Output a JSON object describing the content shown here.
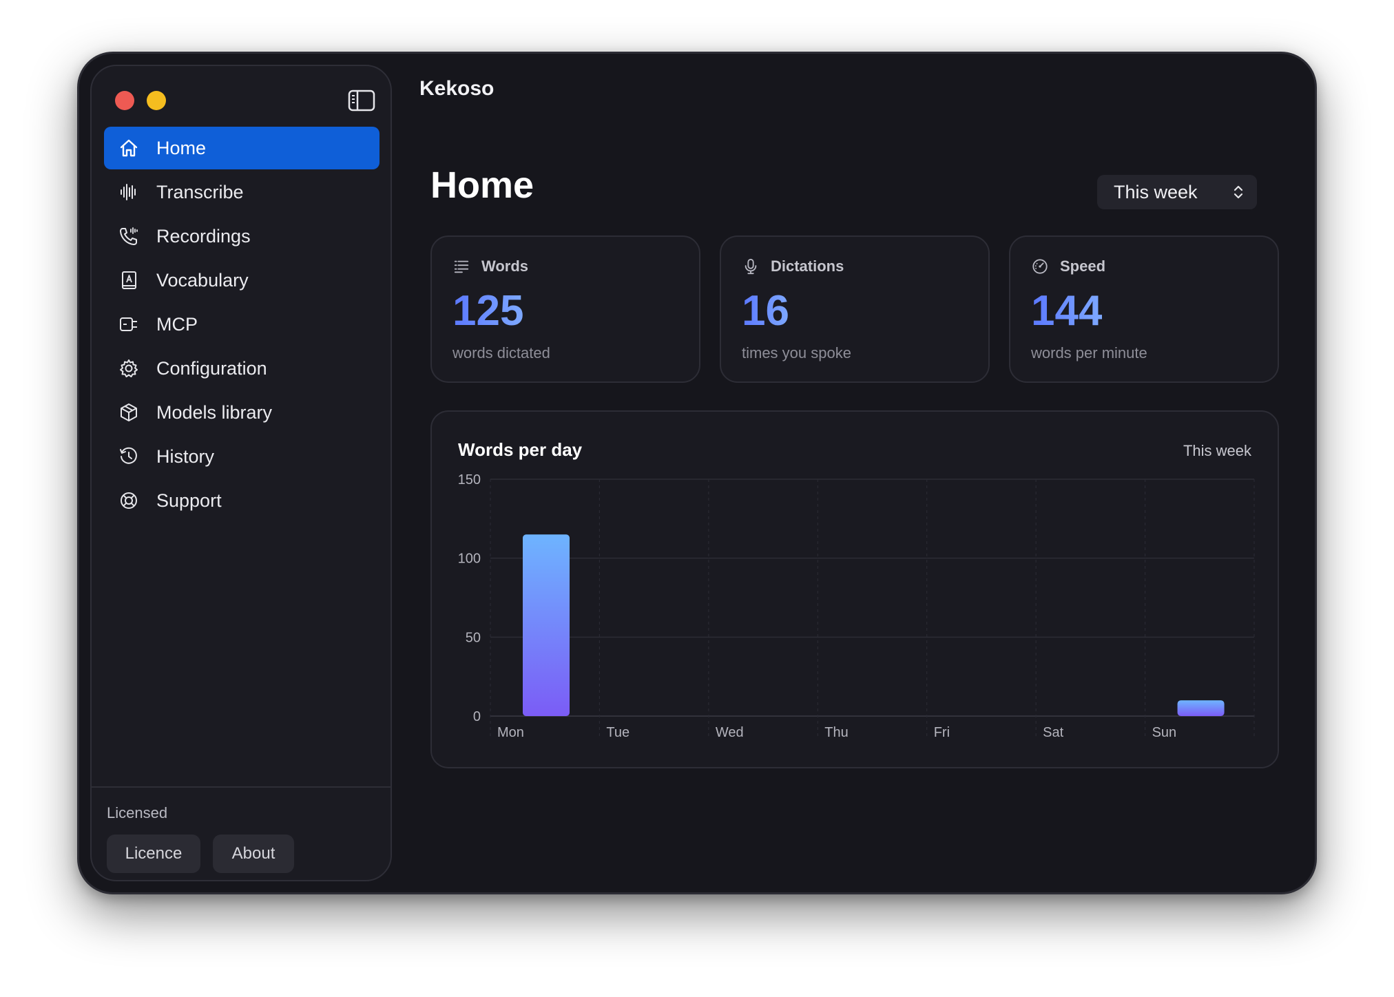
{
  "window": {
    "app_title": "Kekoso",
    "controls": [
      "close",
      "minimize"
    ]
  },
  "sidebar": {
    "items": [
      {
        "label": "Home",
        "icon": "home-icon",
        "active": true
      },
      {
        "label": "Transcribe",
        "icon": "waveform-icon",
        "active": false
      },
      {
        "label": "Recordings",
        "icon": "phone-waves-icon",
        "active": false
      },
      {
        "label": "Vocabulary",
        "icon": "dictionary-icon",
        "active": false
      },
      {
        "label": "MCP",
        "icon": "plug-icon",
        "active": false
      },
      {
        "label": "Configuration",
        "icon": "gear-icon",
        "active": false
      },
      {
        "label": "Models library",
        "icon": "cube-icon",
        "active": false
      },
      {
        "label": "History",
        "icon": "history-icon",
        "active": false
      },
      {
        "label": "Support",
        "icon": "lifebuoy-icon",
        "active": false
      }
    ],
    "license_status": "Licensed",
    "licence_button": "Licence",
    "about_button": "About"
  },
  "main": {
    "page_title": "Home",
    "range_select": "This week"
  },
  "stats": [
    {
      "label": "Words",
      "value": "125",
      "sub": "words dictated",
      "icon": "list-icon"
    },
    {
      "label": "Dictations",
      "value": "16",
      "sub": "times you spoke",
      "icon": "microphone-icon"
    },
    {
      "label": "Speed",
      "value": "144",
      "sub": "words per minute",
      "icon": "speedometer-icon"
    }
  ],
  "chart_data": {
    "type": "bar",
    "title": "Words per day",
    "range_label": "This week",
    "categories": [
      "Mon",
      "Tue",
      "Wed",
      "Thu",
      "Fri",
      "Sat",
      "Sun"
    ],
    "values": [
      115,
      0,
      0,
      0,
      0,
      0,
      10
    ],
    "ylim": [
      0,
      150
    ],
    "yticks": [
      0,
      50,
      100,
      150
    ],
    "grid": true,
    "colors": {
      "bar_top": "#6eb4ff",
      "bar_bottom": "#7b5cf6"
    }
  },
  "colors": {
    "accent": "#0f5fd8",
    "background": "#16161c",
    "stat_gradient_start": "#5b78ff",
    "stat_gradient_end": "#7ea9ff"
  }
}
